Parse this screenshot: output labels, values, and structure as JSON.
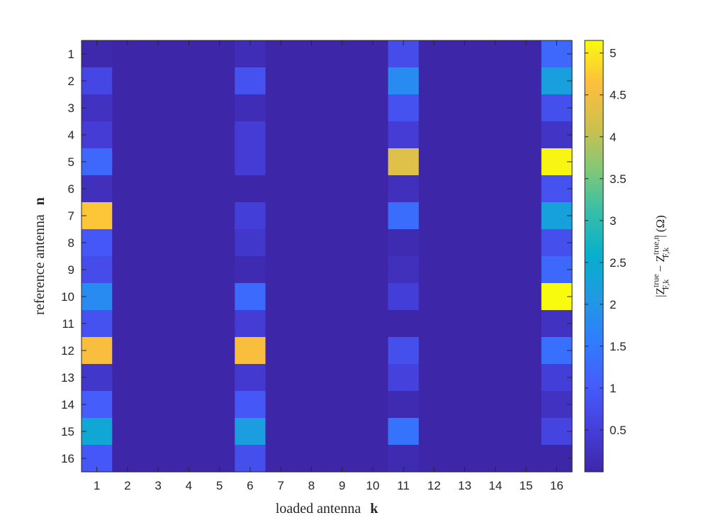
{
  "chart_data": {
    "type": "heatmap",
    "title": "",
    "xlabel": "loaded antenna",
    "xlabel_symbol": "k",
    "ylabel": "reference antenna",
    "ylabel_symbol": "n",
    "x_categories": [
      "1",
      "2",
      "3",
      "4",
      "5",
      "6",
      "7",
      "8",
      "9",
      "10",
      "11",
      "12",
      "13",
      "14",
      "15",
      "16"
    ],
    "y_categories": [
      "1",
      "2",
      "3",
      "4",
      "5",
      "6",
      "7",
      "8",
      "9",
      "10",
      "11",
      "12",
      "13",
      "14",
      "15",
      "16"
    ],
    "colorbar": {
      "label": "|Z_{F,k}^{true} − Z_{F,k}^{true,n}| (Ω)",
      "range": [
        0,
        5.15
      ],
      "ticks": [
        0.5,
        1,
        1.5,
        2,
        2.5,
        3,
        3.5,
        4,
        4.5,
        5
      ],
      "tick_labels": [
        "0.5",
        "1",
        "1.5",
        "2",
        "2.5",
        "3",
        "3.5",
        "4",
        "4.5",
        "5"
      ],
      "colormap": "parula"
    },
    "values": [
      [
        0.05,
        0,
        0,
        0,
        0,
        0.15,
        0,
        0,
        0,
        0,
        0.75,
        0,
        0,
        0,
        0,
        1.2
      ],
      [
        0.65,
        0,
        0,
        0,
        0,
        0.85,
        0,
        0,
        0,
        0,
        1.8,
        0,
        0,
        0,
        0,
        2.2
      ],
      [
        0.25,
        0,
        0,
        0,
        0,
        0.15,
        0,
        0,
        0,
        0,
        0.85,
        0,
        0,
        0,
        0,
        0.8
      ],
      [
        0.45,
        0,
        0,
        0,
        0,
        0.45,
        0,
        0,
        0,
        0,
        0.45,
        0,
        0,
        0,
        0,
        0.3
      ],
      [
        1.2,
        0,
        0,
        0,
        0,
        0.45,
        0,
        0,
        0,
        0,
        4.3,
        0,
        0,
        0,
        0,
        5.1
      ],
      [
        0.2,
        0,
        0,
        0,
        0,
        0,
        0,
        0,
        0,
        0,
        0.2,
        0,
        0,
        0,
        0,
        0.85
      ],
      [
        4.7,
        0,
        0,
        0,
        0,
        0.5,
        0,
        0,
        0,
        0,
        1.3,
        0,
        0,
        0,
        0,
        2.25
      ],
      [
        0.95,
        0,
        0,
        0,
        0,
        0.35,
        0,
        0,
        0,
        0,
        0.1,
        0,
        0,
        0,
        0,
        0.8
      ],
      [
        0.75,
        0,
        0,
        0,
        0,
        0.1,
        0,
        0,
        0,
        0,
        0.2,
        0,
        0,
        0,
        0,
        1.2
      ],
      [
        1.8,
        0,
        0,
        0,
        0,
        1.25,
        0,
        0,
        0,
        0,
        0.5,
        0,
        0,
        0,
        0,
        5.15
      ],
      [
        0.85,
        0,
        0,
        0,
        0,
        0.45,
        0,
        0,
        0,
        0,
        0,
        0,
        0,
        0,
        0,
        0.25
      ],
      [
        4.6,
        0,
        0,
        0,
        0,
        4.6,
        0,
        0,
        0,
        0,
        0.8,
        0,
        0,
        0,
        0,
        1.35
      ],
      [
        0.35,
        0,
        0,
        0,
        0,
        0.4,
        0,
        0,
        0,
        0,
        0.55,
        0,
        0,
        0,
        0,
        0.5
      ],
      [
        1.05,
        0,
        0,
        0,
        0,
        0.95,
        0,
        0,
        0,
        0,
        0.1,
        0,
        0,
        0,
        0,
        0.25
      ],
      [
        2.4,
        0,
        0,
        0,
        0,
        2.15,
        0,
        0,
        0,
        0,
        1.4,
        0,
        0,
        0,
        0,
        0.6
      ],
      [
        0.95,
        0,
        0,
        0,
        0,
        0.8,
        0,
        0,
        0,
        0,
        0.1,
        0,
        0,
        0,
        0,
        0
      ]
    ]
  }
}
